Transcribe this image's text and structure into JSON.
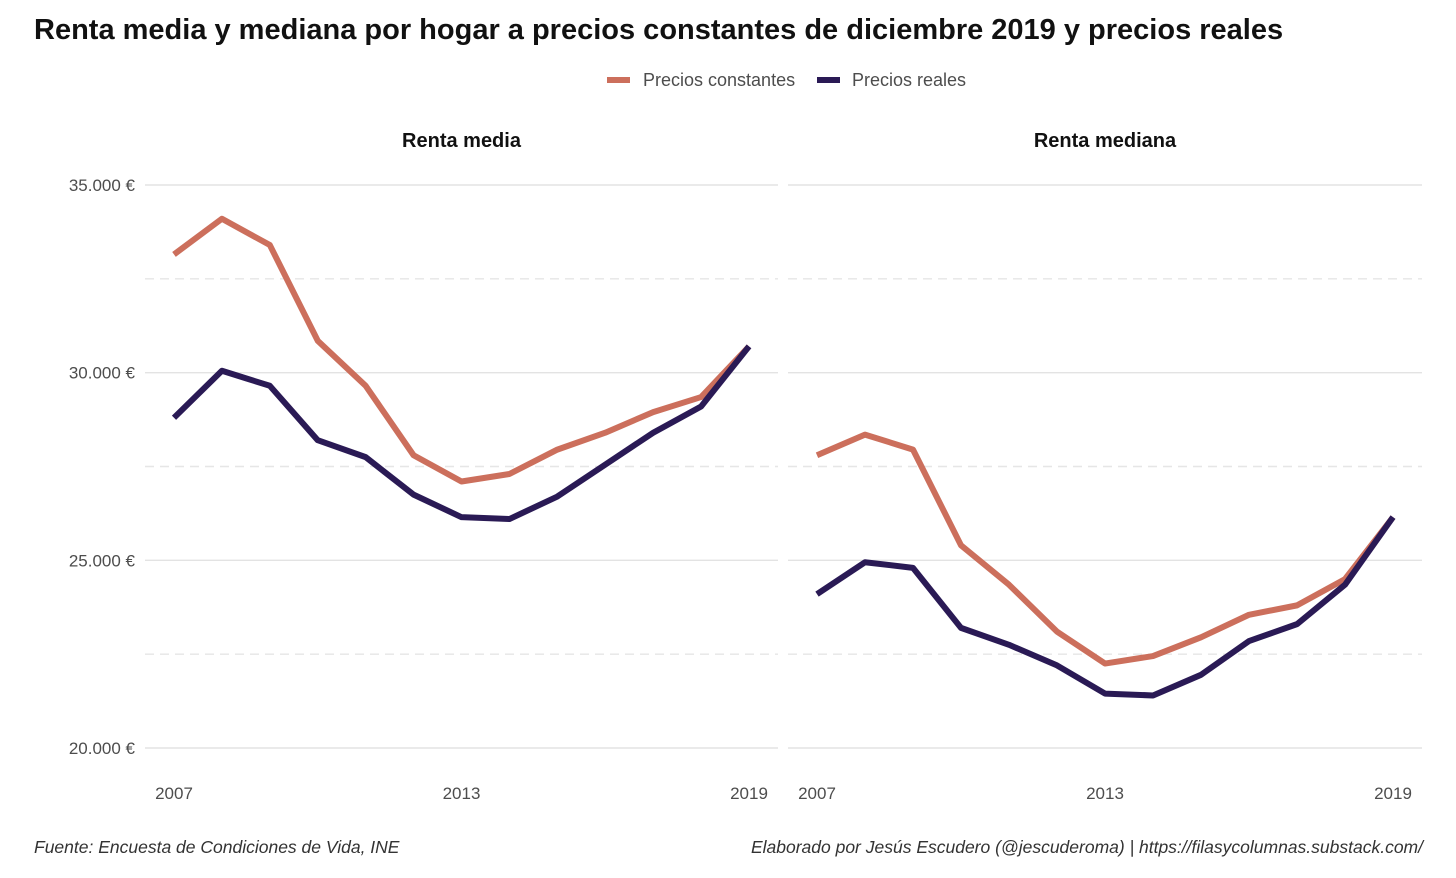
{
  "title": "Renta media y mediana por hogar a precios constantes de diciembre 2019 y precios reales",
  "caption_left": "Fuente: Encuesta de Condiciones de Vida, INE",
  "caption_right": "Elaborado por Jesús Escudero (@jescuderoma) | https://filasycolumnas.substack.com/",
  "legend": [
    {
      "label": "Precios constantes",
      "color": "#cc6f5c"
    },
    {
      "label": "Precios reales",
      "color": "#2a1a55"
    }
  ],
  "chart_data": [
    {
      "type": "line",
      "title": "Renta media",
      "x": [
        2007,
        2008,
        2009,
        2010,
        2011,
        2012,
        2013,
        2014,
        2015,
        2016,
        2017,
        2018,
        2019
      ],
      "xticks": [
        2007,
        2013,
        2019
      ],
      "xtick_labels": [
        "2007",
        "2013",
        "2019"
      ],
      "ylim": [
        20000,
        35000
      ],
      "yticks": [
        20000,
        25000,
        30000,
        35000
      ],
      "ytick_labels": [
        "20.000 €",
        "25.000 €",
        "30.000 €",
        "35.000 €"
      ],
      "grid": true,
      "legend_position": "top",
      "series": [
        {
          "name": "Precios constantes",
          "color": "#cc6f5c",
          "values": [
            33150,
            34100,
            33400,
            30850,
            29650,
            27800,
            27100,
            27300,
            27950,
            28400,
            28950,
            29350,
            30700
          ]
        },
        {
          "name": "Precios reales",
          "color": "#2a1a55",
          "values": [
            28800,
            30050,
            29650,
            28200,
            27750,
            26750,
            26150,
            26100,
            26700,
            27550,
            28400,
            29100,
            30700
          ]
        }
      ]
    },
    {
      "type": "line",
      "title": "Renta mediana",
      "x": [
        2007,
        2008,
        2009,
        2010,
        2011,
        2012,
        2013,
        2014,
        2015,
        2016,
        2017,
        2018,
        2019
      ],
      "xticks": [
        2007,
        2013,
        2019
      ],
      "xtick_labels": [
        "2007",
        "2013",
        "2019"
      ],
      "ylim": [
        20000,
        35000
      ],
      "yticks": [
        20000,
        25000,
        30000,
        35000
      ],
      "ytick_labels": [
        "20.000 €",
        "25.000 €",
        "30.000 €",
        "35.000 €"
      ],
      "grid": true,
      "legend_position": "top",
      "series": [
        {
          "name": "Precios constantes",
          "color": "#cc6f5c",
          "values": [
            27800,
            28350,
            27950,
            25400,
            24350,
            23100,
            22250,
            22450,
            22950,
            23550,
            23800,
            24500,
            26150
          ]
        },
        {
          "name": "Precios reales",
          "color": "#2a1a55",
          "values": [
            24100,
            24950,
            24800,
            23200,
            22750,
            22200,
            21450,
            21400,
            21950,
            22850,
            23300,
            24350,
            26150
          ]
        }
      ]
    }
  ]
}
